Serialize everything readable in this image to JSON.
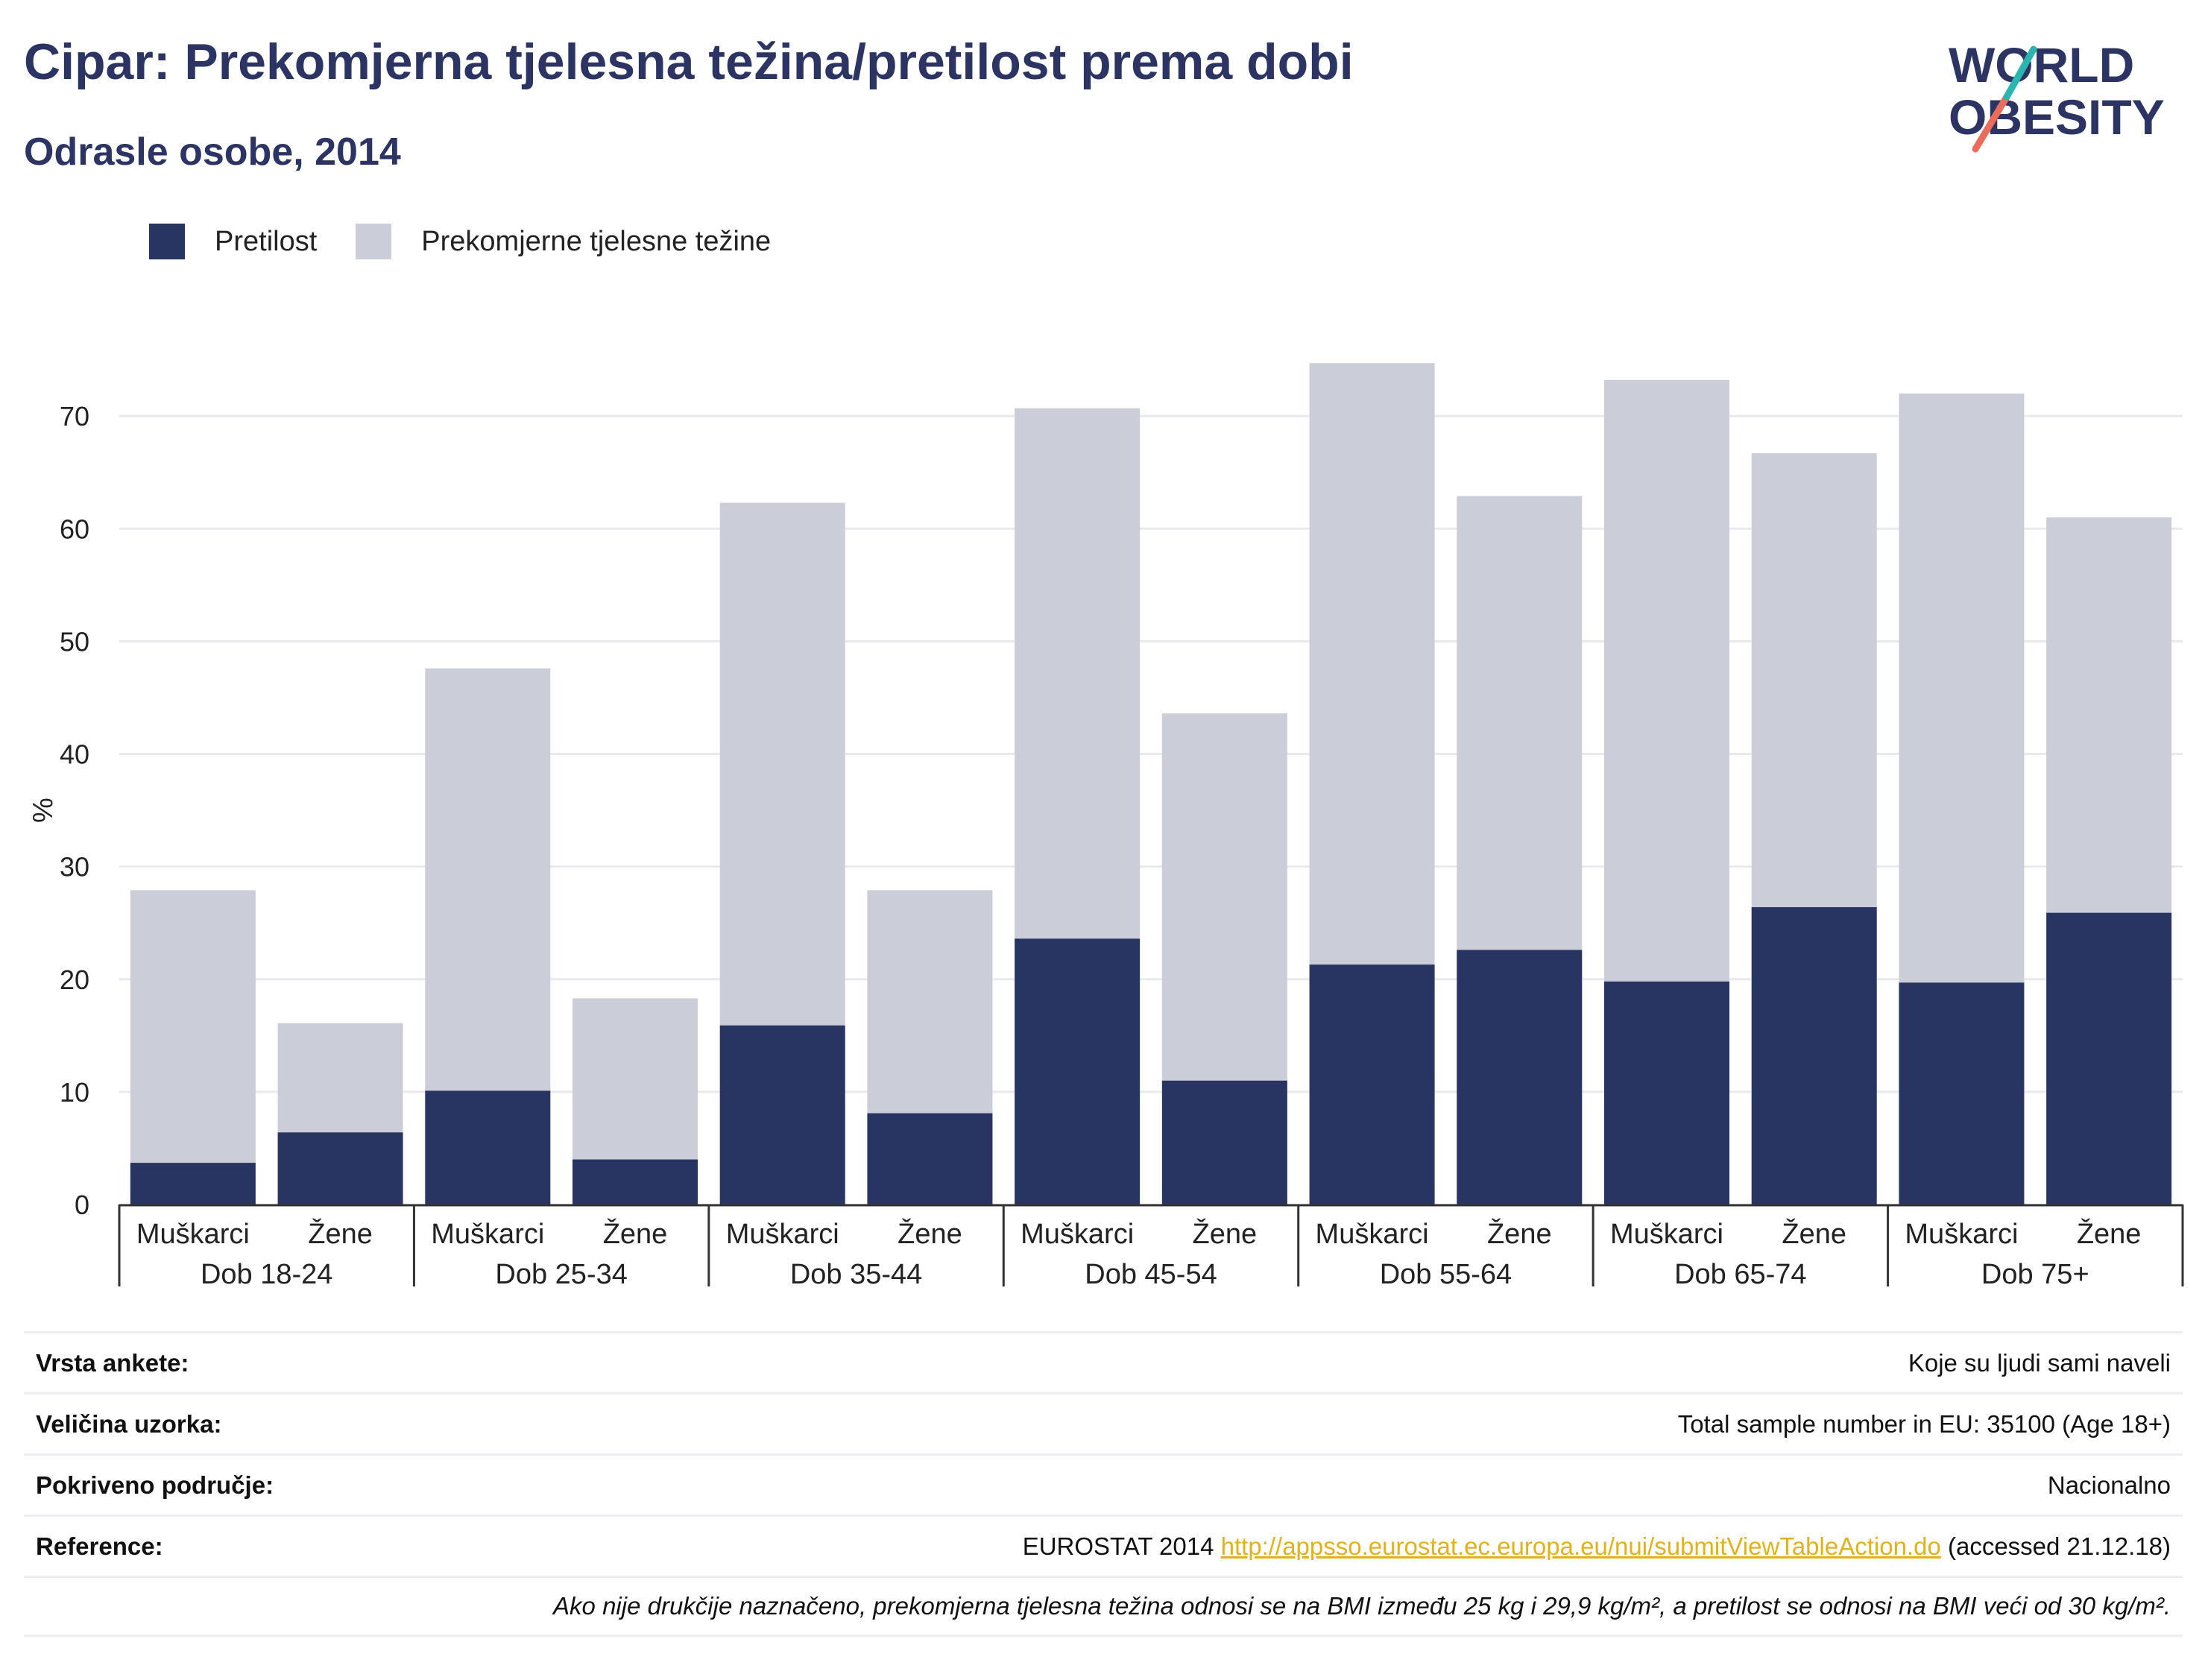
{
  "header": {
    "title": "Cipar: Prekomjerna tjelesna težina/pretilost prema dobi",
    "subtitle": "Odrasle osobe, 2014"
  },
  "logo": {
    "line1": "WORLD",
    "line2": "OBESITY"
  },
  "colors": {
    "obese": "#283462",
    "overweight": "#cbcdd8",
    "title": "#2b3462",
    "link": "#e2b21c",
    "logo_teal": "#2bb5b0",
    "logo_coral": "#e86d5c"
  },
  "chart_data": {
    "type": "bar",
    "stacked": true,
    "ylabel": "%",
    "ylim": [
      0,
      78
    ],
    "yticks": [
      0,
      10,
      20,
      30,
      40,
      50,
      60,
      70
    ],
    "grid": true,
    "legend_position": "top-left",
    "groups": [
      "Dob 18-24",
      "Dob 25-34",
      "Dob 35-44",
      "Dob 45-54",
      "Dob 55-64",
      "Dob 65-74",
      "Dob 75+"
    ],
    "categories": [
      "Muškarci",
      "Žene"
    ],
    "series": [
      {
        "name": "Pretilost",
        "values": [
          [
            3.7,
            6.4
          ],
          [
            10.1,
            4.0
          ],
          [
            15.9,
            8.1
          ],
          [
            23.6,
            11.0
          ],
          [
            21.3,
            22.6
          ],
          [
            19.8,
            26.4
          ],
          [
            19.7,
            25.9
          ]
        ]
      },
      {
        "name": "Prekomjerne tjelesne težine",
        "values": [
          [
            24.2,
            9.7
          ],
          [
            37.5,
            14.3
          ],
          [
            46.4,
            19.8
          ],
          [
            47.1,
            32.6
          ],
          [
            53.4,
            40.3
          ],
          [
            53.4,
            40.3
          ],
          [
            52.3,
            35.1
          ]
        ]
      }
    ]
  },
  "meta": {
    "rows": [
      {
        "label": "Vrsta ankete:",
        "value": "Koje su ljudi sami naveli"
      },
      {
        "label": "Veličina uzorka:",
        "value": "Total sample number in EU: 35100 (Age 18+)"
      },
      {
        "label": "Pokriveno područje:",
        "value": "Nacionalno"
      }
    ],
    "reference": {
      "label": "Reference:",
      "prefix": "EUROSTAT 2014 ",
      "link": "http://appsso.eurostat.ec.europa.eu/nui/submitViewTableAction.do",
      "suffix": " (accessed 21.12.18)"
    },
    "note": "Ako nije drukčije naznačeno, prekomjerna tjelesna težina odnosi se na BMI između 25 kg i 29,9 kg/m², a pretilost se odnosi na BMI veći od 30 kg/m²."
  }
}
